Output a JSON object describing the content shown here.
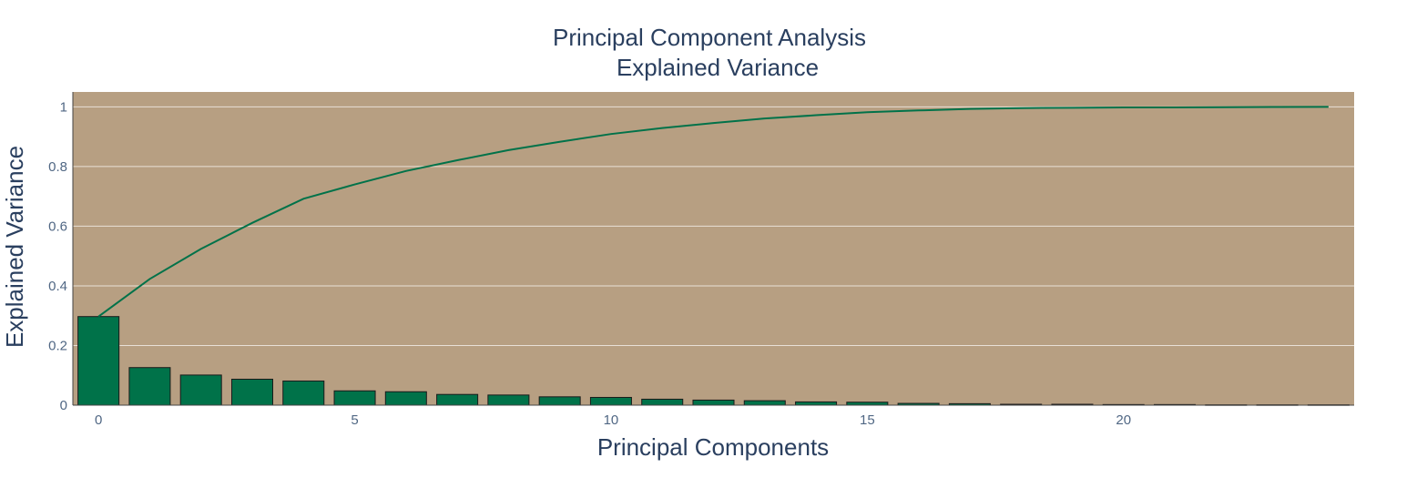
{
  "chart_data": {
    "type": "bar",
    "title": "Principal Component Analysis",
    "subtitle": "Explained Variance",
    "xlabel": "Principal Components",
    "ylabel": "Explained Variance",
    "xlim": [
      -0.5,
      24.5
    ],
    "ylim": [
      0,
      1.05
    ],
    "x_ticks": [
      0,
      5,
      10,
      15,
      20
    ],
    "y_ticks": [
      0,
      0.2,
      0.4,
      0.6,
      0.8,
      1
    ],
    "y_tick_labels": [
      "0",
      "0.2",
      "0.4",
      "0.6",
      "0.8",
      "1"
    ],
    "grid": true,
    "colors": {
      "plot_background": "#b79f82",
      "bar_fill": "#007249",
      "bar_outline": "#1a1a1a",
      "line": "#007249",
      "grid": "#e8e0d6",
      "text": "#2a3f5f"
    },
    "series": [
      {
        "kind": "bar",
        "x": [
          0,
          1,
          2,
          3,
          4,
          5,
          6,
          7,
          8,
          9,
          10,
          11,
          12,
          13,
          14,
          15,
          16,
          17,
          18,
          19,
          20,
          21,
          22,
          23,
          24
        ],
        "values": [
          0.297,
          0.126,
          0.101,
          0.087,
          0.081,
          0.048,
          0.045,
          0.036,
          0.034,
          0.028,
          0.026,
          0.02,
          0.017,
          0.015,
          0.011,
          0.01,
          0.006,
          0.005,
          0.003,
          0.003,
          0.002,
          0.002,
          0.001,
          0.001,
          0.001
        ]
      },
      {
        "kind": "line",
        "x": [
          0,
          1,
          2,
          3,
          4,
          5,
          6,
          7,
          8,
          9,
          10,
          11,
          12,
          13,
          14,
          15,
          16,
          17,
          18,
          19,
          20,
          21,
          22,
          23,
          24
        ],
        "values": [
          0.297,
          0.423,
          0.524,
          0.611,
          0.692,
          0.74,
          0.785,
          0.821,
          0.855,
          0.883,
          0.909,
          0.929,
          0.946,
          0.961,
          0.972,
          0.982,
          0.988,
          0.993,
          0.996,
          0.997,
          0.998,
          0.998,
          0.999,
          0.9995,
          1.0
        ]
      }
    ]
  }
}
